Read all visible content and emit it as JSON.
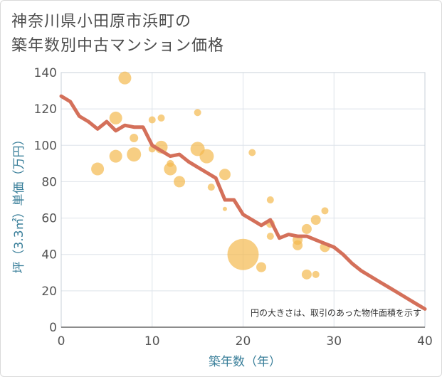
{
  "title_line1": "神奈川県小田原市浜町の",
  "title_line2": "築年数別中古マンション価格",
  "colors": {
    "bubble": "#f3b94f",
    "line": "#d4705a",
    "grid": "#dde3ea",
    "axis_label": "#3a7f9a"
  },
  "chart_data": {
    "type": "scatter",
    "xlabel": "築年数（年）",
    "ylabel": "坪（3.3㎡）単価（万円）",
    "xlim": [
      0,
      40
    ],
    "ylim": [
      0,
      140
    ],
    "xticks": [
      "0",
      "10",
      "20",
      "30",
      "40"
    ],
    "yticks": [
      "0",
      "20",
      "40",
      "60",
      "80",
      "100",
      "120",
      "140"
    ],
    "grid": true,
    "annotation": "円の大きさは、取引のあった物件面積を示す",
    "series": [
      {
        "type": "scatter",
        "points": [
          {
            "x": 4,
            "y": 87,
            "size": 9
          },
          {
            "x": 6,
            "y": 115,
            "size": 9
          },
          {
            "x": 6,
            "y": 94,
            "size": 9
          },
          {
            "x": 7,
            "y": 137,
            "size": 9
          },
          {
            "x": 8,
            "y": 104,
            "size": 6
          },
          {
            "x": 8,
            "y": 95,
            "size": 10
          },
          {
            "x": 10,
            "y": 114,
            "size": 5
          },
          {
            "x": 10,
            "y": 98,
            "size": 5
          },
          {
            "x": 11,
            "y": 115,
            "size": 5
          },
          {
            "x": 11,
            "y": 99,
            "size": 9
          },
          {
            "x": 12,
            "y": 90,
            "size": 5
          },
          {
            "x": 12,
            "y": 87,
            "size": 9
          },
          {
            "x": 13,
            "y": 80,
            "size": 8
          },
          {
            "x": 15,
            "y": 118,
            "size": 5
          },
          {
            "x": 15,
            "y": 98,
            "size": 10
          },
          {
            "x": 16,
            "y": 94,
            "size": 10
          },
          {
            "x": 16.5,
            "y": 77,
            "size": 5
          },
          {
            "x": 18,
            "y": 84,
            "size": 8
          },
          {
            "x": 18,
            "y": 65,
            "size": 3
          },
          {
            "x": 20,
            "y": 40,
            "size": 22
          },
          {
            "x": 21,
            "y": 96,
            "size": 5
          },
          {
            "x": 22,
            "y": 33,
            "size": 7
          },
          {
            "x": 23,
            "y": 70,
            "size": 5
          },
          {
            "x": 23,
            "y": 57,
            "size": 6
          },
          {
            "x": 23,
            "y": 50,
            "size": 5
          },
          {
            "x": 26,
            "y": 48,
            "size": 7
          },
          {
            "x": 26,
            "y": 45,
            "size": 7
          },
          {
            "x": 27,
            "y": 54,
            "size": 7
          },
          {
            "x": 27,
            "y": 29,
            "size": 7
          },
          {
            "x": 28,
            "y": 59,
            "size": 7
          },
          {
            "x": 28,
            "y": 29,
            "size": 5
          },
          {
            "x": 29,
            "y": 64,
            "size": 5
          },
          {
            "x": 29,
            "y": 44,
            "size": 7
          }
        ]
      },
      {
        "type": "line",
        "x": [
          0,
          1,
          2,
          3,
          4,
          5,
          6,
          7,
          8,
          9,
          10,
          11,
          12,
          13,
          14,
          15,
          16,
          17,
          18,
          19,
          20,
          21,
          22,
          23,
          24,
          25,
          26,
          27,
          28,
          29,
          30,
          31,
          32,
          33,
          34,
          35,
          36,
          37,
          38,
          39,
          40
        ],
        "y": [
          127,
          124,
          116,
          113,
          109,
          113,
          108,
          111,
          110,
          110,
          100,
          97,
          94,
          95,
          91,
          88,
          85,
          82,
          70,
          70,
          62,
          59,
          56,
          59,
          49,
          51,
          50,
          50,
          48,
          46,
          44,
          40,
          35,
          31,
          28,
          25,
          22,
          19,
          16,
          13,
          10
        ]
      }
    ]
  }
}
